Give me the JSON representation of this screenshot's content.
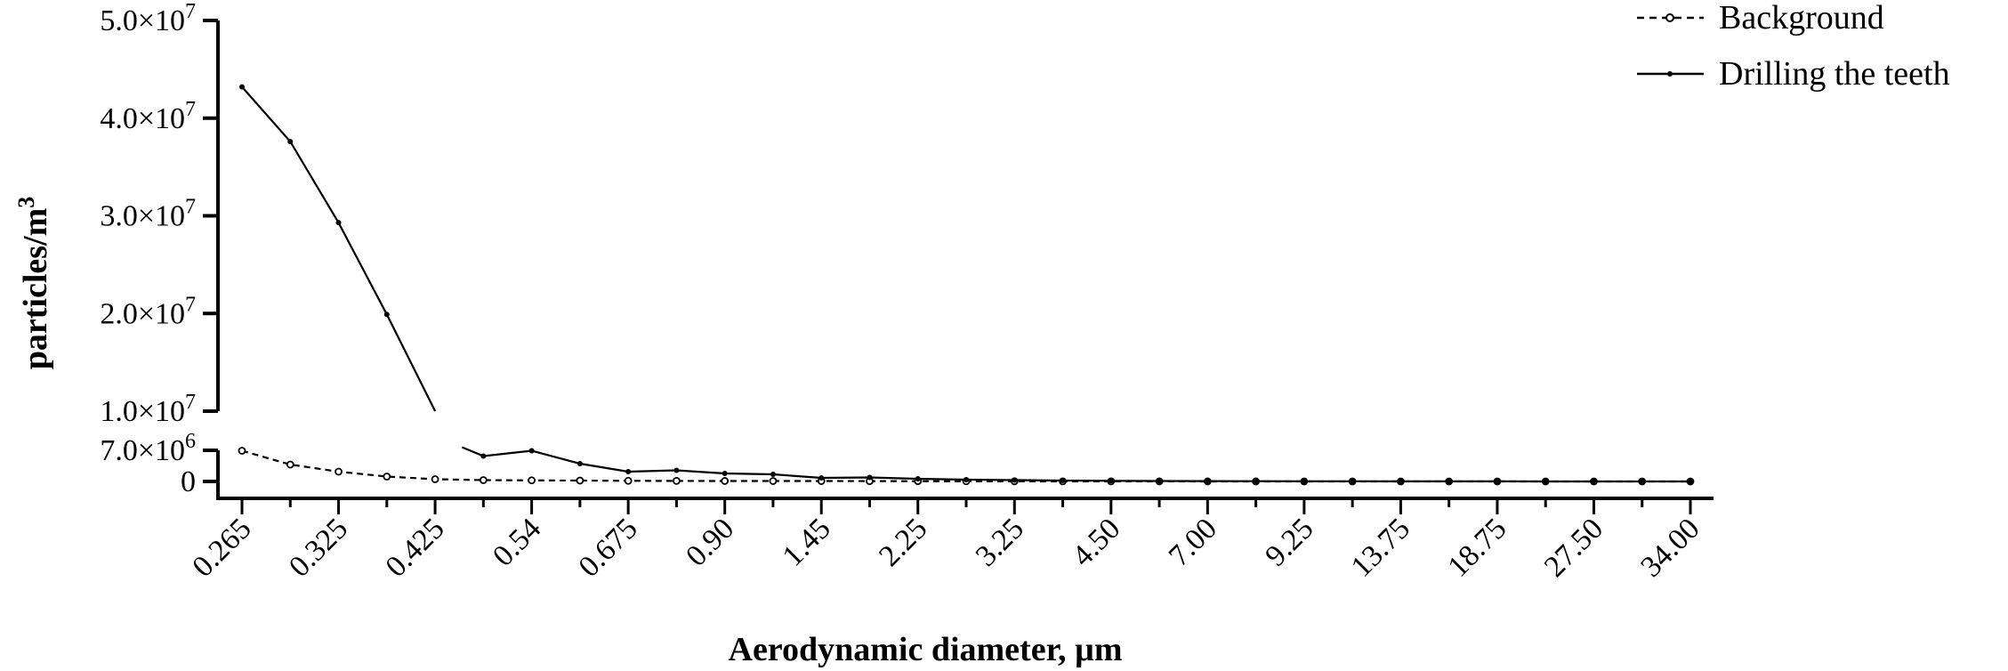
{
  "chart_data": {
    "type": "line",
    "title": "",
    "xlabel": "Aerodynamic diameter, µm",
    "ylabel": "particles/m³",
    "y_axis_break": true,
    "ylim_lower": [
      0,
      7000000
    ],
    "ylim_upper": [
      10000000,
      50000000
    ],
    "y_ticks_upper": [
      {
        "label_base": "5.0×10",
        "label_exp": "7"
      },
      {
        "label_base": "4.0×10",
        "label_exp": "7"
      },
      {
        "label_base": "3.0×10",
        "label_exp": "7"
      },
      {
        "label_base": "2.0×10",
        "label_exp": "7"
      },
      {
        "label_base": "1.0×10",
        "label_exp": "7"
      }
    ],
    "y_ticks_lower": [
      {
        "label_base": "7.0×10",
        "label_exp": "6"
      },
      {
        "label_base": "0",
        "label_exp": ""
      }
    ],
    "x_tick_labels": [
      "0.265",
      "0.325",
      "0.425",
      "0.54",
      "0.675",
      "0.90",
      "1.45",
      "2.25",
      "3.25",
      "4.50",
      "7.00",
      "9.25",
      "13.75",
      "18.75",
      "27.50",
      "34.00"
    ],
    "n_categories": 31,
    "legend_position": "top-right",
    "series": [
      {
        "name": "Background",
        "style": "dashed-open-circle",
        "values": [
          6900000,
          3800000,
          2200000,
          1100000,
          500000,
          300000,
          250000,
          200000,
          150000,
          130000,
          110000,
          100000,
          90000,
          80000,
          60000,
          50000,
          40000,
          30000,
          20000,
          15000,
          10000,
          8000,
          6000,
          5000,
          4000,
          3000,
          2000,
          2000,
          1000,
          1000,
          1000
        ]
      },
      {
        "name": "Drilling the teeth",
        "style": "solid-filled-dot",
        "values": [
          43200000,
          37600000,
          29300000,
          19900000,
          10000000,
          5700000,
          6900000,
          4000000,
          2200000,
          2500000,
          1800000,
          1600000,
          800000,
          900000,
          600000,
          400000,
          300000,
          200000,
          150000,
          100000,
          80000,
          60000,
          50000,
          40000,
          30000,
          20000,
          15000,
          10000,
          8000,
          6000,
          5000
        ]
      }
    ],
    "gap_after_index": 4
  }
}
